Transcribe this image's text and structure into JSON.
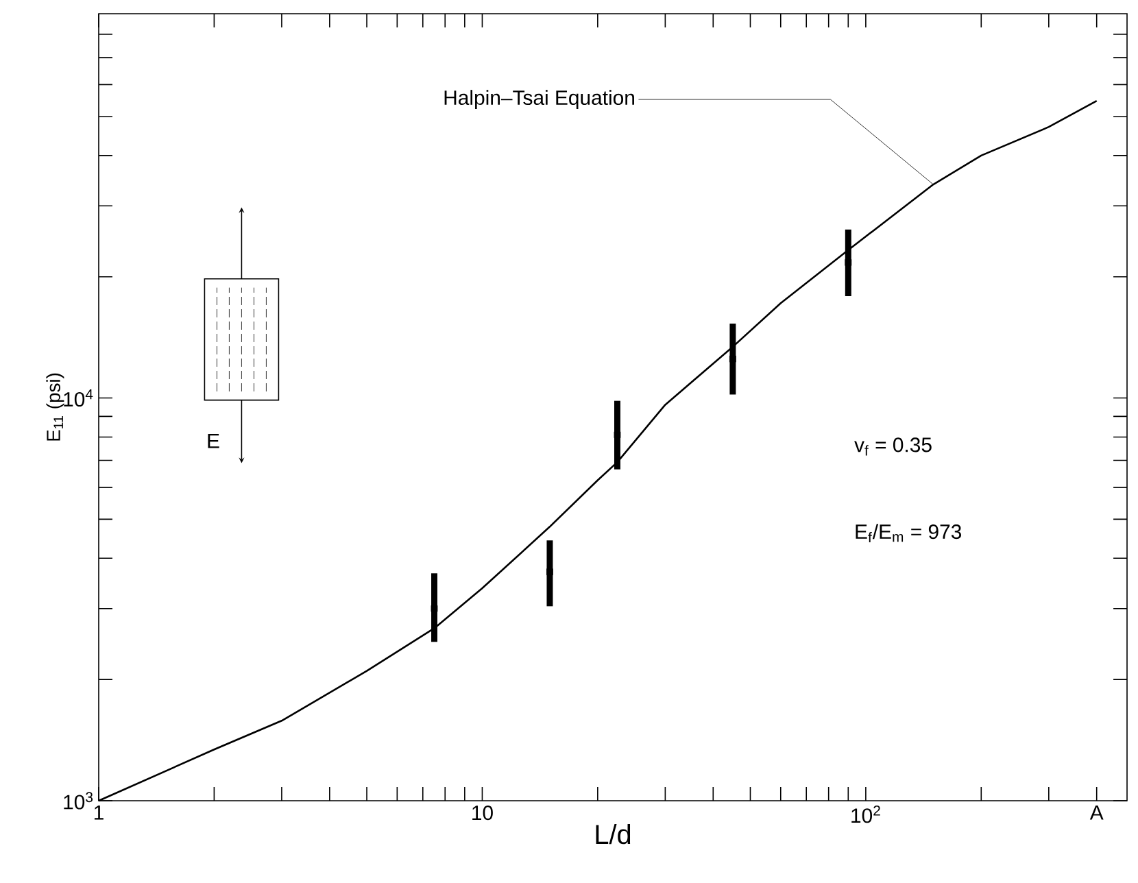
{
  "chart_data": {
    "type": "line",
    "xlabel": "L/d",
    "ylabel": "E$_{11}$ (psi)",
    "log": "xy",
    "grid": false,
    "xlim": [
      1,
      480
    ],
    "ylim": [
      1000,
      90000
    ],
    "xticks": [
      1,
      {
        "value": 2,
        "label": null
      },
      {
        "value": 3,
        "label": null
      },
      {
        "value": 4,
        "label": null
      },
      {
        "value": 5,
        "label": null
      },
      {
        "value": 6,
        "label": null
      },
      {
        "value": 7,
        "label": null
      },
      {
        "value": 8,
        "label": null
      },
      {
        "value": 9,
        "label": null
      },
      10,
      {
        "value": 20,
        "label": null
      },
      {
        "value": 30,
        "label": null
      },
      {
        "value": 40,
        "label": null
      },
      {
        "value": 50,
        "label": null
      },
      {
        "value": 60,
        "label": null
      },
      {
        "value": 70,
        "label": null
      },
      {
        "value": 80,
        "label": null
      },
      {
        "value": 90,
        "label": null
      },
      {
        "value": 100,
        "label": "10$^{2}$"
      },
      {
        "value": 200,
        "label": null
      },
      {
        "value": 300,
        "label": null
      },
      {
        "value": 400,
        "label": "A"
      }
    ],
    "yticks": [
      {
        "value": 1000,
        "label": "10$^{3}$"
      },
      {
        "value": 2000,
        "label": null
      },
      {
        "value": 3000,
        "label": null
      },
      {
        "value": 4000,
        "label": null
      },
      {
        "value": 5000,
        "label": null
      },
      {
        "value": 6000,
        "label": null
      },
      {
        "value": 7000,
        "label": null
      },
      {
        "value": 8000,
        "label": null
      },
      {
        "value": 9000,
        "label": null
      },
      {
        "value": 10000,
        "label": "10$^{4}$"
      },
      {
        "value": 20000,
        "label": null
      },
      {
        "value": 30000,
        "label": null
      },
      {
        "value": 40000,
        "label": null
      },
      {
        "value": 50000,
        "label": null
      },
      {
        "value": 60000,
        "label": null
      },
      {
        "value": 70000,
        "label": null
      },
      {
        "value": 80000,
        "label": null
      }
    ],
    "series": [
      {
        "color": "#000000",
        "marker": "none",
        "line_style": "solid",
        "x": [
          1,
          2,
          3,
          5,
          7.5,
          10,
          15,
          20,
          22.5,
          30,
          45,
          60,
          90,
          150,
          200,
          300,
          400
        ],
        "values": [
          1000,
          1340,
          1580,
          2100,
          2680,
          3370,
          4790,
          6250,
          6930,
          9620,
          13400,
          17200,
          23300,
          33900,
          40000,
          47100,
          54700
        ]
      },
      {
        "type": "scatter",
        "color": "#000000",
        "marker": "square",
        "x": [
          7.5,
          15,
          22.5,
          45,
          90
        ],
        "values": [
          3000,
          3700,
          8100,
          12500,
          21700
        ],
        "errors": [
          [
            2480,
            3670
          ],
          [
            3040,
            4430
          ],
          [
            6650,
            9840
          ],
          [
            10200,
            15300
          ],
          [
            17900,
            26200
          ]
        ]
      }
    ],
    "annotations": [
      {
        "text": "Halpin–Tsai Equation",
        "x": 150,
        "y": 33900
      },
      "E",
      "v$_{f}$ = 0.35",
      "E$_{f}$/E$_{m}$ = 973"
    ]
  }
}
